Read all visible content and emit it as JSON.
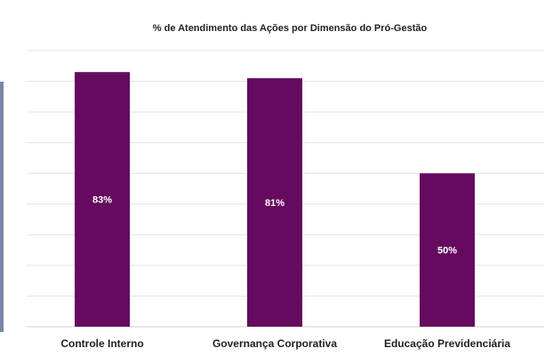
{
  "chart_data": {
    "type": "bar",
    "title": "% de Atendimento das Ações por Dimensão do Pró-Gestão",
    "categories": [
      "Controle Interno",
      "Governança Corporativa",
      "Educação Previdenciária"
    ],
    "values": [
      83,
      81,
      50
    ],
    "data_labels": [
      "83%",
      "81%",
      "50%"
    ],
    "ylim": [
      0,
      90
    ],
    "grid": true,
    "legend": "none",
    "bar_color": "#650a5e"
  }
}
